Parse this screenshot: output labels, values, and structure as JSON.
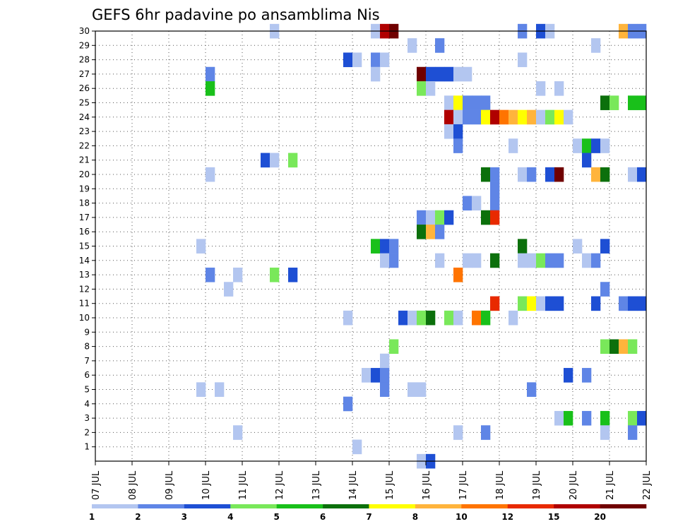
{
  "chart_data": {
    "type": "heatmap",
    "title": "GEFS 6hr padavine po ansamblima Nis",
    "xlabel": "",
    "ylabel": "",
    "x_tick_labels": [
      "07 JUL",
      "08 JUL",
      "09 JUL",
      "10 JUL",
      "11 JUL",
      "12 JUL",
      "13 JUL",
      "14 JUL",
      "15 JUL",
      "16 JUL",
      "17 JUL",
      "18 JUL",
      "19 JUL",
      "20 JUL",
      "21 JUL",
      "22 JUL"
    ],
    "x_unit": "day (6-hourly steps, 4 per day)",
    "xlim": [
      0,
      60
    ],
    "y_tick_labels": [
      "1",
      "2",
      "3",
      "4",
      "5",
      "6",
      "7",
      "8",
      "9",
      "10",
      "11",
      "12",
      "13",
      "14",
      "15",
      "16",
      "17",
      "18",
      "19",
      "20",
      "21",
      "22",
      "23",
      "24",
      "25",
      "26",
      "27",
      "28",
      "29",
      "30"
    ],
    "ylim": [
      0,
      30
    ],
    "grid": true,
    "legend": {
      "placement": "bottom",
      "levels": [
        "1",
        "2",
        "3",
        "4",
        "5",
        "6",
        "7",
        "8",
        "10",
        "12",
        "15",
        "20"
      ],
      "colors": [
        "#b3c6f0",
        "#5f85e6",
        "#1e4fd4",
        "#79e85a",
        "#19c01a",
        "#0c700c",
        "#ffff00",
        "#ffb43c",
        "#ff7400",
        "#e82a00",
        "#b00000",
        "#700000"
      ]
    },
    "cells": [
      {
        "member": 30,
        "x": [
          19.5
        ],
        "c": 0
      },
      {
        "member": 30,
        "x": [
          30.5
        ],
        "c": 0
      },
      {
        "member": 30,
        "x": [
          31.5
        ],
        "c": 10
      },
      {
        "member": 30,
        "x": [
          32.5
        ],
        "c": 11
      },
      {
        "member": 30,
        "x": [
          46.5
        ],
        "c": 1
      },
      {
        "member": 30,
        "x": [
          48.5
        ],
        "c": 2
      },
      {
        "member": 30,
        "x": [
          49.5
        ],
        "c": 0
      },
      {
        "member": 30,
        "x": [
          57.5
        ],
        "c": 7
      },
      {
        "member": 30,
        "x": [
          58.5,
          59.5
        ],
        "c": 1
      },
      {
        "member": 29,
        "x": [
          34.5
        ],
        "c": 0
      },
      {
        "member": 29,
        "x": [
          37.5
        ],
        "c": 1
      },
      {
        "member": 29,
        "x": [
          54.5
        ],
        "c": 0
      },
      {
        "member": 28,
        "x": [
          27.5
        ],
        "c": 2
      },
      {
        "member": 28,
        "x": [
          28.5
        ],
        "c": 0
      },
      {
        "member": 28,
        "x": [
          30.5
        ],
        "c": 1
      },
      {
        "member": 28,
        "x": [
          31.5
        ],
        "c": 0
      },
      {
        "member": 28,
        "x": [
          46.5
        ],
        "c": 0
      },
      {
        "member": 27,
        "x": [
          12.5
        ],
        "c": 1
      },
      {
        "member": 27,
        "x": [
          30.5
        ],
        "c": 0
      },
      {
        "member": 27,
        "x": [
          35.5
        ],
        "c": 11
      },
      {
        "member": 27,
        "x": [
          36.5,
          37.5,
          38.5
        ],
        "c": 2
      },
      {
        "member": 27,
        "x": [
          39.5,
          40.5
        ],
        "c": 0
      },
      {
        "member": 26,
        "x": [
          12.5
        ],
        "c": 4
      },
      {
        "member": 26,
        "x": [
          35.5
        ],
        "c": 3
      },
      {
        "member": 26,
        "x": [
          36.5
        ],
        "c": 0
      },
      {
        "member": 26,
        "x": [
          48.5
        ],
        "c": 0
      },
      {
        "member": 26,
        "x": [
          50.5
        ],
        "c": 0
      },
      {
        "member": 25,
        "x": [
          38.5
        ],
        "c": 0
      },
      {
        "member": 25,
        "x": [
          39.5
        ],
        "c": 6
      },
      {
        "member": 25,
        "x": [
          40.5,
          41.5,
          42.5
        ],
        "c": 1
      },
      {
        "member": 25,
        "x": [
          55.5
        ],
        "c": 5
      },
      {
        "member": 25,
        "x": [
          56.5
        ],
        "c": 3
      },
      {
        "member": 25,
        "x": [
          58.5,
          59.5
        ],
        "c": 4
      },
      {
        "member": 24,
        "x": [
          38.5
        ],
        "c": 10
      },
      {
        "member": 24,
        "x": [
          39.5
        ],
        "c": 0
      },
      {
        "member": 24,
        "x": [
          40.5,
          41.5
        ],
        "c": 1
      },
      {
        "member": 24,
        "x": [
          42.5
        ],
        "c": 6
      },
      {
        "member": 24,
        "x": [
          43.5
        ],
        "c": 10
      },
      {
        "member": 24,
        "x": [
          44.5
        ],
        "c": 8
      },
      {
        "member": 24,
        "x": [
          45.5
        ],
        "c": 7
      },
      {
        "member": 24,
        "x": [
          46.5
        ],
        "c": 6
      },
      {
        "member": 24,
        "x": [
          47.5
        ],
        "c": 7
      },
      {
        "member": 24,
        "x": [
          48.5
        ],
        "c": 0
      },
      {
        "member": 24,
        "x": [
          49.5
        ],
        "c": 3
      },
      {
        "member": 24,
        "x": [
          50.5
        ],
        "c": 6
      },
      {
        "member": 24,
        "x": [
          51.5
        ],
        "c": 0
      },
      {
        "member": 23,
        "x": [
          38.5
        ],
        "c": 0
      },
      {
        "member": 23,
        "x": [
          39.5
        ],
        "c": 2
      },
      {
        "member": 22,
        "x": [
          39.5
        ],
        "c": 1
      },
      {
        "member": 22,
        "x": [
          45.5
        ],
        "c": 0
      },
      {
        "member": 22,
        "x": [
          52.5
        ],
        "c": 0
      },
      {
        "member": 22,
        "x": [
          53.5
        ],
        "c": 4
      },
      {
        "member": 22,
        "x": [
          54.5
        ],
        "c": 2
      },
      {
        "member": 22,
        "x": [
          55.5
        ],
        "c": 0
      },
      {
        "member": 21,
        "x": [
          18.5
        ],
        "c": 2
      },
      {
        "member": 21,
        "x": [
          19.5
        ],
        "c": 0
      },
      {
        "member": 21,
        "x": [
          21.5
        ],
        "c": 3
      },
      {
        "member": 21,
        "x": [
          53.5
        ],
        "c": 2
      },
      {
        "member": 20,
        "x": [
          12.5
        ],
        "c": 0
      },
      {
        "member": 20,
        "x": [
          42.5
        ],
        "c": 5
      },
      {
        "member": 20,
        "x": [
          43.5
        ],
        "c": 1
      },
      {
        "member": 20,
        "x": [
          46.5
        ],
        "c": 0
      },
      {
        "member": 20,
        "x": [
          47.5
        ],
        "c": 1
      },
      {
        "member": 20,
        "x": [
          49.5
        ],
        "c": 2
      },
      {
        "member": 20,
        "x": [
          50.5
        ],
        "c": 11
      },
      {
        "member": 20,
        "x": [
          54.5
        ],
        "c": 7
      },
      {
        "member": 20,
        "x": [
          55.5
        ],
        "c": 5
      },
      {
        "member": 20,
        "x": [
          58.5
        ],
        "c": 0
      },
      {
        "member": 20,
        "x": [
          59.5
        ],
        "c": 2
      },
      {
        "member": 19,
        "x": [
          43.5
        ],
        "c": 1
      },
      {
        "member": 18,
        "x": [
          40.5
        ],
        "c": 1
      },
      {
        "member": 18,
        "x": [
          41.5
        ],
        "c": 0
      },
      {
        "member": 18,
        "x": [
          43.5
        ],
        "c": 1
      },
      {
        "member": 17,
        "x": [
          35.5
        ],
        "c": 1
      },
      {
        "member": 17,
        "x": [
          36.5
        ],
        "c": 0
      },
      {
        "member": 17,
        "x": [
          37.5
        ],
        "c": 3
      },
      {
        "member": 17,
        "x": [
          38.5
        ],
        "c": 2
      },
      {
        "member": 17,
        "x": [
          42.5
        ],
        "c": 5
      },
      {
        "member": 17,
        "x": [
          43.5
        ],
        "c": 9
      },
      {
        "member": 16,
        "x": [
          35.5
        ],
        "c": 5
      },
      {
        "member": 16,
        "x": [
          36.5
        ],
        "c": 7
      },
      {
        "member": 16,
        "x": [
          37.5
        ],
        "c": 1
      },
      {
        "member": 15,
        "x": [
          11.5
        ],
        "c": 0
      },
      {
        "member": 15,
        "x": [
          30.5
        ],
        "c": 4
      },
      {
        "member": 15,
        "x": [
          31.5
        ],
        "c": 2
      },
      {
        "member": 15,
        "x": [
          32.5
        ],
        "c": 1
      },
      {
        "member": 15,
        "x": [
          46.5
        ],
        "c": 5
      },
      {
        "member": 15,
        "x": [
          52.5
        ],
        "c": 0
      },
      {
        "member": 15,
        "x": [
          55.5
        ],
        "c": 2
      },
      {
        "member": 14,
        "x": [
          31.5
        ],
        "c": 0
      },
      {
        "member": 14,
        "x": [
          32.5
        ],
        "c": 1
      },
      {
        "member": 14,
        "x": [
          37.5
        ],
        "c": 0
      },
      {
        "member": 14,
        "x": [
          40.5,
          41.5
        ],
        "c": 0
      },
      {
        "member": 14,
        "x": [
          43.5
        ],
        "c": 5
      },
      {
        "member": 14,
        "x": [
          46.5,
          47.5
        ],
        "c": 0
      },
      {
        "member": 14,
        "x": [
          48.5
        ],
        "c": 3
      },
      {
        "member": 14,
        "x": [
          49.5,
          50.5
        ],
        "c": 1
      },
      {
        "member": 14,
        "x": [
          53.5
        ],
        "c": 0
      },
      {
        "member": 14,
        "x": [
          54.5
        ],
        "c": 1
      },
      {
        "member": 13,
        "x": [
          12.5
        ],
        "c": 1
      },
      {
        "member": 13,
        "x": [
          15.5
        ],
        "c": 0
      },
      {
        "member": 13,
        "x": [
          19.5
        ],
        "c": 3
      },
      {
        "member": 13,
        "x": [
          21.5
        ],
        "c": 2
      },
      {
        "member": 13,
        "x": [
          39.5
        ],
        "c": 8
      },
      {
        "member": 12,
        "x": [
          14.5
        ],
        "c": 0
      },
      {
        "member": 12,
        "x": [
          55.5
        ],
        "c": 1
      },
      {
        "member": 11,
        "x": [
          43.5
        ],
        "c": 9
      },
      {
        "member": 11,
        "x": [
          46.5
        ],
        "c": 3
      },
      {
        "member": 11,
        "x": [
          47.5
        ],
        "c": 6
      },
      {
        "member": 11,
        "x": [
          48.5
        ],
        "c": 0
      },
      {
        "member": 11,
        "x": [
          49.5,
          50.5
        ],
        "c": 2
      },
      {
        "member": 11,
        "x": [
          54.5
        ],
        "c": 2
      },
      {
        "member": 11,
        "x": [
          57.5
        ],
        "c": 1
      },
      {
        "member": 11,
        "x": [
          58.5,
          59.5
        ],
        "c": 2
      },
      {
        "member": 10,
        "x": [
          27.5
        ],
        "c": 0
      },
      {
        "member": 10,
        "x": [
          33.5
        ],
        "c": 2
      },
      {
        "member": 10,
        "x": [
          34.5
        ],
        "c": 0
      },
      {
        "member": 10,
        "x": [
          35.5
        ],
        "c": 3
      },
      {
        "member": 10,
        "x": [
          36.5
        ],
        "c": 5
      },
      {
        "member": 10,
        "x": [
          38.5
        ],
        "c": 3
      },
      {
        "member": 10,
        "x": [
          39.5
        ],
        "c": 0
      },
      {
        "member": 10,
        "x": [
          41.5
        ],
        "c": 8
      },
      {
        "member": 10,
        "x": [
          42.5
        ],
        "c": 4
      },
      {
        "member": 10,
        "x": [
          45.5
        ],
        "c": 0
      },
      {
        "member": 8,
        "x": [
          32.5
        ],
        "c": 3
      },
      {
        "member": 8,
        "x": [
          55.5
        ],
        "c": 3
      },
      {
        "member": 8,
        "x": [
          56.5
        ],
        "c": 5
      },
      {
        "member": 8,
        "x": [
          57.5
        ],
        "c": 7
      },
      {
        "member": 8,
        "x": [
          58.5
        ],
        "c": 3
      },
      {
        "member": 7,
        "x": [
          31.5
        ],
        "c": 0
      },
      {
        "member": 6,
        "x": [
          29.5
        ],
        "c": 0
      },
      {
        "member": 6,
        "x": [
          30.5
        ],
        "c": 2
      },
      {
        "member": 6,
        "x": [
          31.5
        ],
        "c": 1
      },
      {
        "member": 6,
        "x": [
          51.5
        ],
        "c": 2
      },
      {
        "member": 6,
        "x": [
          53.5
        ],
        "c": 1
      },
      {
        "member": 5,
        "x": [
          11.5
        ],
        "c": 0
      },
      {
        "member": 5,
        "x": [
          13.5
        ],
        "c": 0
      },
      {
        "member": 5,
        "x": [
          31.5
        ],
        "c": 1
      },
      {
        "member": 5,
        "x": [
          34.5,
          35.5
        ],
        "c": 0
      },
      {
        "member": 5,
        "x": [
          47.5
        ],
        "c": 1
      },
      {
        "member": 4,
        "x": [
          27.5
        ],
        "c": 1
      },
      {
        "member": 3,
        "x": [
          50.5
        ],
        "c": 0
      },
      {
        "member": 3,
        "x": [
          51.5
        ],
        "c": 4
      },
      {
        "member": 3,
        "x": [
          53.5
        ],
        "c": 1
      },
      {
        "member": 3,
        "x": [
          55.5
        ],
        "c": 4
      },
      {
        "member": 3,
        "x": [
          58.5
        ],
        "c": 3
      },
      {
        "member": 3,
        "x": [
          59.5
        ],
        "c": 2
      },
      {
        "member": 2,
        "x": [
          15.5
        ],
        "c": 0
      },
      {
        "member": 2,
        "x": [
          39.5
        ],
        "c": 0
      },
      {
        "member": 2,
        "x": [
          42.5
        ],
        "c": 1
      },
      {
        "member": 2,
        "x": [
          55.5
        ],
        "c": 0
      },
      {
        "member": 2,
        "x": [
          58.5
        ],
        "c": 1
      },
      {
        "member": 1,
        "x": [
          28.5
        ],
        "c": 0
      },
      {
        "member": 0,
        "x": [
          35.5
        ],
        "c": 0
      },
      {
        "member": 0,
        "x": [
          36.5
        ],
        "c": 2
      }
    ]
  }
}
